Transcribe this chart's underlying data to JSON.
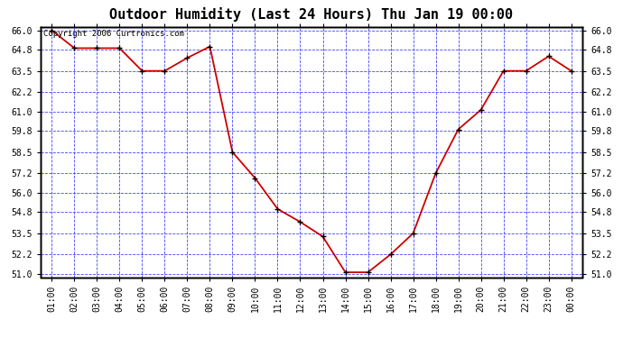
{
  "title": "Outdoor Humidity (Last 24 Hours) Thu Jan 19 00:00",
  "copyright": "Copyright 2006 Curtronics.com",
  "x_labels": [
    "01:00",
    "02:00",
    "03:00",
    "04:00",
    "05:00",
    "06:00",
    "07:00",
    "08:00",
    "09:00",
    "10:00",
    "11:00",
    "12:00",
    "13:00",
    "14:00",
    "15:00",
    "16:00",
    "17:00",
    "18:00",
    "19:00",
    "20:00",
    "21:00",
    "22:00",
    "23:00",
    "00:00"
  ],
  "y_values": [
    66.0,
    64.9,
    64.9,
    64.9,
    63.5,
    63.5,
    64.3,
    65.0,
    58.5,
    56.9,
    55.0,
    54.2,
    53.3,
    51.1,
    51.1,
    52.2,
    53.5,
    57.2,
    59.9,
    61.1,
    63.5,
    63.5,
    64.4,
    63.5
  ],
  "line_color": "#cc0000",
  "marker_color": "#000000",
  "bg_color": "#ffffff",
  "plot_bg_color": "#ffffff",
  "grid_color": "#4444ff",
  "border_color": "#000000",
  "title_color": "#000000",
  "ylim_min": 51.0,
  "ylim_max": 66.0,
  "yticks": [
    51.0,
    52.2,
    53.5,
    54.8,
    56.0,
    57.2,
    58.5,
    59.8,
    61.0,
    62.2,
    63.5,
    64.8,
    66.0
  ],
  "title_fontsize": 11,
  "tick_fontsize": 7,
  "copyright_fontsize": 6.5
}
